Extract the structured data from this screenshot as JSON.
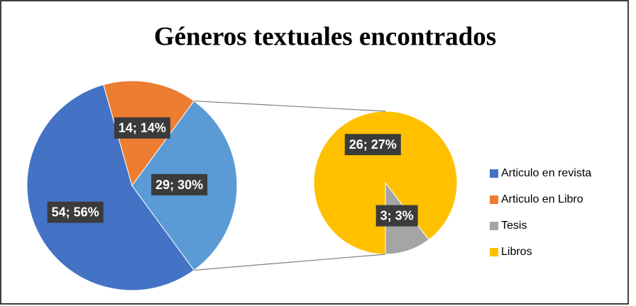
{
  "chart_data": {
    "type": "pie-of-pie",
    "title": "Géneros textuales encontrados",
    "primary": {
      "categories": [
        "Articulo en revista",
        "Articulo en Libro",
        null
      ],
      "values": [
        54,
        14,
        29
      ],
      "value_labels": [
        "54; 56%",
        "14; 14%",
        "29; 30%"
      ],
      "colors": [
        "#4472c4",
        "#ed7d31",
        "#5b9bd5"
      ]
    },
    "secondary": {
      "categories": [
        "Tesis",
        "Libros"
      ],
      "values": [
        3,
        26
      ],
      "value_labels": [
        "3; 3%",
        "26; 27%"
      ],
      "colors": [
        "#a5a5a5",
        "#ffc000"
      ]
    },
    "legend": "right"
  }
}
